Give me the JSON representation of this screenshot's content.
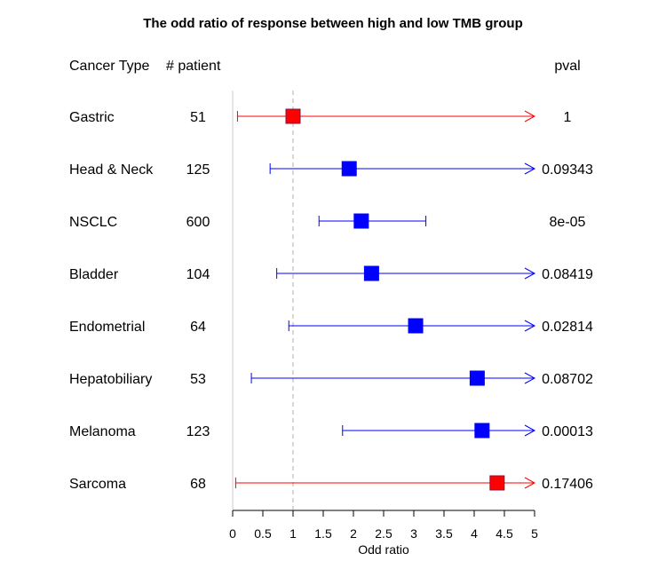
{
  "chart_data": {
    "type": "forest",
    "title": "The odd ratio of response between high and low TMB group",
    "xlabel": "Odd ratio",
    "xlim": [
      0,
      5
    ],
    "xticks": [
      "0",
      "0.5",
      "1",
      "1.5",
      "2",
      "2.5",
      "3",
      "3.5",
      "4",
      "4.5",
      "5"
    ],
    "reference_line": 1,
    "columns": {
      "cancer_type": "Cancer Type",
      "n": "# patient",
      "pval": "pval"
    },
    "colors": {
      "significant": "#0000ff",
      "not_significant": "#ff0000"
    },
    "rows": [
      {
        "label": "Gastric",
        "n": "51",
        "or": 1.0,
        "lo": 0.08,
        "hi": 5.0,
        "hi_arrow": true,
        "pval": "1",
        "color": "#ff0000"
      },
      {
        "label": "Head & Neck",
        "n": "125",
        "or": 1.93,
        "lo": 0.62,
        "hi": 5.0,
        "hi_arrow": true,
        "pval": "0.09343",
        "color": "#0000ff"
      },
      {
        "label": "NSCLC",
        "n": "600",
        "or": 2.13,
        "lo": 1.43,
        "hi": 3.2,
        "hi_arrow": false,
        "pval": "8e-05",
        "color": "#0000ff"
      },
      {
        "label": "Bladder",
        "n": "104",
        "or": 2.3,
        "lo": 0.73,
        "hi": 5.0,
        "hi_arrow": true,
        "pval": "0.08419",
        "color": "#0000ff"
      },
      {
        "label": "Endometrial",
        "n": "64",
        "or": 3.03,
        "lo": 0.93,
        "hi": 5.0,
        "hi_arrow": true,
        "pval": "0.02814",
        "color": "#0000ff"
      },
      {
        "label": "Hepatobiliary",
        "n": "53",
        "or": 4.05,
        "lo": 0.31,
        "hi": 5.0,
        "hi_arrow": true,
        "pval": "0.08702",
        "color": "#0000ff"
      },
      {
        "label": "Melanoma",
        "n": "123",
        "or": 4.13,
        "lo": 1.82,
        "hi": 5.0,
        "hi_arrow": true,
        "pval": "0.00013",
        "color": "#0000ff"
      },
      {
        "label": "Sarcoma",
        "n": "68",
        "or": 4.38,
        "lo": 0.05,
        "hi": 5.0,
        "hi_arrow": true,
        "pval": "0.17406",
        "color": "#ff0000"
      }
    ]
  }
}
